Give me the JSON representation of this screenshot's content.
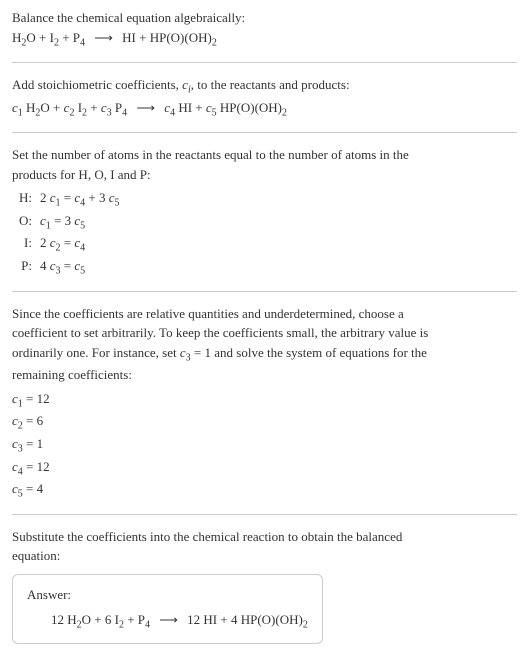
{
  "intro": {
    "line1": "Balance the chemical equation algebraically:",
    "reactant1": "H",
    "reactant1_sub": "2",
    "reactant1b": "O + I",
    "reactant1b_sub": "2",
    "reactant1c": " + P",
    "reactant1c_sub": "4",
    "arrow": "⟶",
    "product1": "HI + HP(O)(OH)",
    "product1_sub": "2"
  },
  "stoich": {
    "line1_a": "Add stoichiometric coefficients, ",
    "line1_ci": "c",
    "line1_ci_sub": "i",
    "line1_b": ", to the reactants and products:",
    "c1": "c",
    "c1_sub": "1",
    "sp1": " H",
    "sp1_sub": "2",
    "sp1b": "O + ",
    "c2": "c",
    "c2_sub": "2",
    "sp2": " I",
    "sp2_sub": "2",
    "sp2b": " + ",
    "c3": "c",
    "c3_sub": "3",
    "sp3": " P",
    "sp3_sub": "4",
    "arrow": "⟶",
    "c4": "c",
    "c4_sub": "4",
    "sp4": " HI + ",
    "c5": "c",
    "c5_sub": "5",
    "sp5": " HP(O)(OH)",
    "sp5_sub": "2"
  },
  "atoms": {
    "intro1": "Set the number of atoms in the reactants equal to the number of atoms in the",
    "intro2": "products for H, O, I and P:",
    "rows": [
      {
        "label": "H:",
        "lhs_coef": "2 ",
        "lhs_c": "c",
        "lhs_sub": "1",
        "eq": " = ",
        "rhs_c1": "c",
        "rhs_sub1": "4",
        "plus": " + 3 ",
        "rhs_c2": "c",
        "rhs_sub2": "5"
      },
      {
        "label": "O:",
        "lhs_coef": "",
        "lhs_c": "c",
        "lhs_sub": "1",
        "eq": " = 3 ",
        "rhs_c1": "c",
        "rhs_sub1": "5",
        "plus": "",
        "rhs_c2": "",
        "rhs_sub2": ""
      },
      {
        "label": "I:",
        "lhs_coef": "2 ",
        "lhs_c": "c",
        "lhs_sub": "2",
        "eq": " = ",
        "rhs_c1": "c",
        "rhs_sub1": "4",
        "plus": "",
        "rhs_c2": "",
        "rhs_sub2": ""
      },
      {
        "label": "P:",
        "lhs_coef": "4 ",
        "lhs_c": "c",
        "lhs_sub": "3",
        "eq": " = ",
        "rhs_c1": "c",
        "rhs_sub1": "5",
        "plus": "",
        "rhs_c2": "",
        "rhs_sub2": ""
      }
    ]
  },
  "solve": {
    "line1": "Since the coefficients are relative quantities and underdetermined, choose a",
    "line2": "coefficient to set arbitrarily. To keep the coefficients small, the arbitrary value is",
    "line3a": "ordinarily one. For instance, set ",
    "line3_c": "c",
    "line3_sub": "3",
    "line3b": " = 1 and solve the system of equations for the",
    "line4": "remaining coefficients:",
    "coeffs": [
      {
        "c": "c",
        "sub": "1",
        "val": " = 12"
      },
      {
        "c": "c",
        "sub": "2",
        "val": " = 6"
      },
      {
        "c": "c",
        "sub": "3",
        "val": " = 1"
      },
      {
        "c": "c",
        "sub": "4",
        "val": " = 12"
      },
      {
        "c": "c",
        "sub": "5",
        "val": " = 4"
      }
    ]
  },
  "subst": {
    "line1": "Substitute the coefficients into the chemical reaction to obtain the balanced",
    "line2": "equation:"
  },
  "answer": {
    "label": "Answer:",
    "eq_a": "12 H",
    "eq_a_sub": "2",
    "eq_b": "O + 6 I",
    "eq_b_sub": "2",
    "eq_c": " + P",
    "eq_c_sub": "4",
    "arrow": "⟶",
    "eq_d": "12 HI + 4 HP(O)(OH)",
    "eq_d_sub": "2"
  }
}
